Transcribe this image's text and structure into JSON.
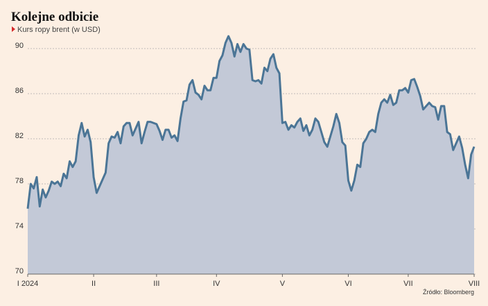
{
  "chart_data": {
    "type": "area",
    "title": "Kolejne odbicie",
    "subtitle": "Kurs ropy brent (w USD)",
    "source": "Źródło: Bloomberg",
    "color": "#4b7596",
    "fill": "#c3c9d7",
    "marker_color": "#d62b2b",
    "grid": true,
    "ylim": [
      70,
      92
    ],
    "yticks": [
      70,
      74,
      78,
      82,
      86,
      90
    ],
    "categories": [
      "I 2024",
      null,
      null,
      null,
      null,
      null,
      null,
      null,
      null,
      null,
      null,
      null,
      null,
      null,
      null,
      null,
      null,
      null,
      null,
      null,
      null,
      null,
      "II",
      null,
      null,
      null,
      null,
      null,
      null,
      null,
      null,
      null,
      null,
      null,
      null,
      null,
      null,
      null,
      null,
      null,
      null,
      null,
      null,
      "III",
      null,
      null,
      null,
      null,
      null,
      null,
      null,
      null,
      null,
      null,
      null,
      null,
      null,
      null,
      null,
      null,
      null,
      null,
      null,
      "IV",
      null,
      null,
      null,
      null,
      null,
      null,
      null,
      null,
      null,
      null,
      null,
      null,
      null,
      null,
      null,
      null,
      null,
      null,
      null,
      null,
      null,
      "V",
      null,
      null,
      null,
      null,
      null,
      null,
      null,
      null,
      null,
      null,
      null,
      null,
      null,
      null,
      null,
      null,
      null,
      null,
      null,
      null,
      null,
      "VI",
      null,
      null,
      null,
      null,
      null,
      null,
      null,
      null,
      null,
      null,
      null,
      null,
      null,
      null,
      null,
      null,
      null,
      null,
      null,
      "VII",
      null,
      null,
      null,
      null,
      null,
      null,
      null,
      null,
      null,
      null,
      null,
      null,
      null,
      null,
      null,
      null,
      null,
      null,
      null,
      null,
      null,
      "VIII"
    ],
    "values": [
      75.8,
      78.0,
      77.6,
      78.6,
      76.0,
      77.5,
      76.8,
      77.4,
      78.2,
      78.0,
      78.2,
      77.8,
      78.9,
      78.5,
      80.0,
      79.5,
      80.0,
      82.3,
      83.4,
      82.2,
      82.8,
      81.7,
      78.6,
      77.2,
      77.8,
      78.4,
      79.0,
      81.6,
      82.2,
      82.1,
      82.6,
      81.6,
      83.1,
      83.4,
      83.4,
      82.3,
      82.9,
      83.5,
      81.6,
      82.6,
      83.5,
      83.5,
      83.4,
      83.3,
      82.7,
      81.9,
      82.8,
      82.8,
      82.1,
      82.3,
      81.8,
      83.8,
      85.3,
      85.4,
      86.8,
      87.2,
      86.1,
      85.9,
      85.5,
      86.7,
      86.3,
      86.3,
      87.4,
      87.4,
      88.9,
      89.4,
      90.5,
      91.1,
      90.5,
      89.3,
      90.4,
      89.7,
      90.4,
      90.0,
      89.9,
      87.2,
      87.1,
      87.2,
      86.9,
      88.3,
      88.0,
      89.1,
      89.5,
      88.3,
      87.8,
      83.4,
      83.5,
      82.8,
      83.2,
      83.0,
      83.5,
      83.8,
      82.7,
      83.2,
      82.3,
      82.8,
      83.8,
      83.5,
      82.6,
      81.7,
      81.3,
      82.2,
      83.1,
      84.2,
      83.4,
      81.7,
      81.4,
      78.3,
      77.4,
      78.3,
      79.7,
      79.5,
      81.6,
      82.0,
      82.6,
      82.8,
      82.6,
      84.2,
      85.2,
      85.5,
      85.2,
      85.9,
      85.0,
      85.2,
      86.3,
      86.3,
      86.5,
      86.1,
      87.2,
      87.3,
      86.6,
      85.8,
      84.6,
      84.9,
      85.2,
      84.9,
      84.8,
      83.7,
      84.9,
      84.9,
      82.6,
      82.4,
      81.0,
      81.6,
      82.2,
      81.2,
      79.7,
      78.5,
      80.6,
      81.3
    ]
  }
}
